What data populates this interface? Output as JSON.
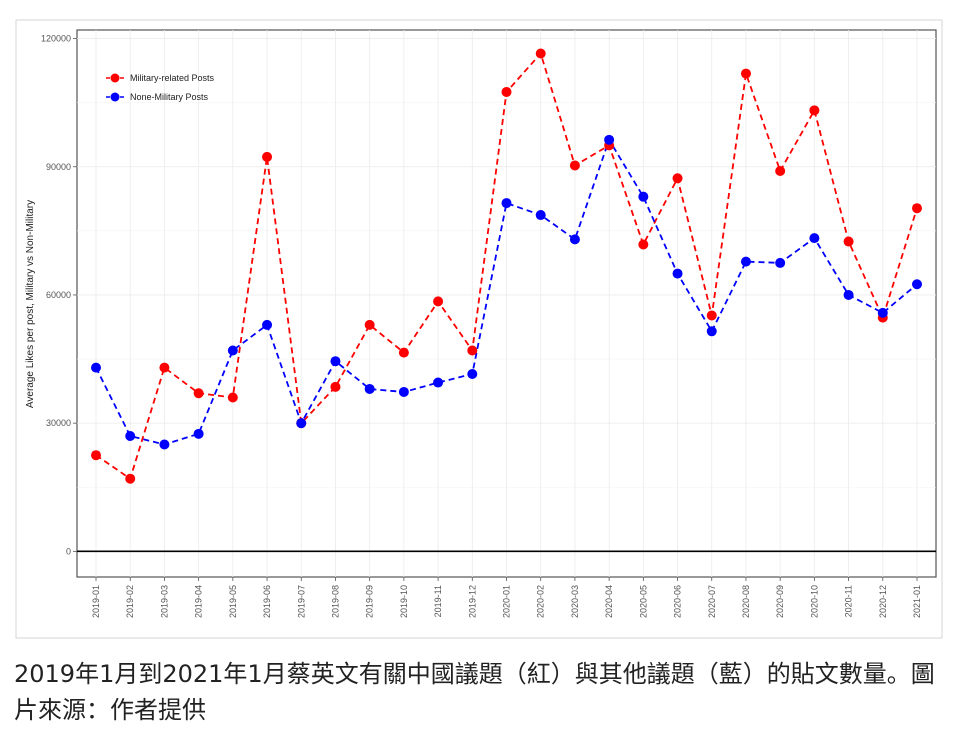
{
  "caption": "2019年1月到2021年1月蔡英文有關中國議題（紅）與其他議題（藍）的貼文數量。圖片來源：作者提供",
  "chart_data": {
    "type": "line",
    "ylabel": "Average Likes per post, Military vs Non-Military",
    "xlabel": "",
    "ylim": [
      -6000,
      122000
    ],
    "yticks": [
      0,
      30000,
      60000,
      90000,
      120000
    ],
    "grid": true,
    "legend_position": "top-left",
    "categories": [
      "2019-01",
      "2019-02",
      "2019-03",
      "2019-04",
      "2019-05",
      "2019-06",
      "2019-07",
      "2019-08",
      "2019-09",
      "2019-10",
      "2019-11",
      "2019-12",
      "2020-01",
      "2020-02",
      "2020-03",
      "2020-04",
      "2020-05",
      "2020-06",
      "2020-07",
      "2020-08",
      "2020-09",
      "2020-10",
      "2020-11",
      "2020-12",
      "2021-01"
    ],
    "series": [
      {
        "name": "Military-related Posts",
        "color": "#ff0000",
        "values": [
          22500,
          17000,
          43000,
          37000,
          36000,
          92300,
          30000,
          38500,
          53000,
          46500,
          58500,
          47000,
          107500,
          116500,
          90300,
          95000,
          71800,
          87300,
          55200,
          111800,
          89000,
          103200,
          72500,
          54700,
          80300
        ]
      },
      {
        "name": "None-Military Posts",
        "color": "#0000ff",
        "values": [
          43000,
          27000,
          25000,
          27500,
          47000,
          53000,
          30000,
          44500,
          38000,
          37300,
          39500,
          41500,
          81500,
          78700,
          73000,
          96300,
          83000,
          65000,
          51500,
          67800,
          67500,
          73300,
          60000,
          55800,
          62500
        ]
      }
    ]
  }
}
